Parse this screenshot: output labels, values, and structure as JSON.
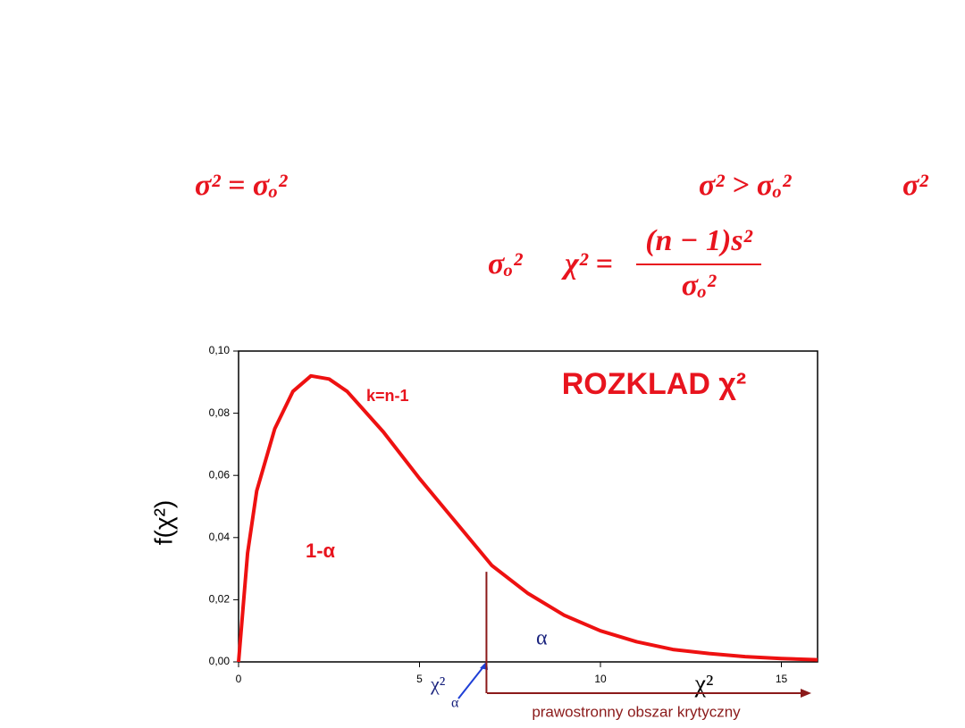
{
  "formulas": {
    "null_hypothesis": "σ² = σₒ²",
    "alternative": "σ² > σₒ²",
    "cut_off": "σ²",
    "variance": "σₒ²",
    "statistic_lhs": "χ² =",
    "statistic_num": "(n − 1)s²",
    "statistic_den": "σₒ²"
  },
  "chart_data": {
    "type": "line",
    "title": "ROZKLAD  χ²",
    "y_label": "f(χ²)",
    "x_label": "χ²",
    "x": [
      0,
      0.25,
      0.5,
      1,
      1.5,
      2,
      2.5,
      3,
      4,
      5,
      6,
      7,
      8,
      9,
      10,
      11,
      12,
      13,
      14,
      15,
      16
    ],
    "series": [
      {
        "name": "k=n-1",
        "color": "#ee1111",
        "values": [
          0,
          0.035,
          0.055,
          0.075,
          0.087,
          0.092,
          0.091,
          0.087,
          0.074,
          0.059,
          0.045,
          0.031,
          0.022,
          0.015,
          0.01,
          0.0065,
          0.004,
          0.0027,
          0.0017,
          0.0011,
          0.0007
        ]
      }
    ],
    "xlim": [
      0,
      16
    ],
    "ylim": [
      0,
      0.1
    ],
    "xticks": [
      0,
      5,
      10,
      15
    ],
    "yticks": [
      {
        "value": 0,
        "label": "0,00"
      },
      {
        "value": 0.02,
        "label": "0,02"
      },
      {
        "value": 0.04,
        "label": "0,04"
      },
      {
        "value": 0.06,
        "label": "0,06"
      },
      {
        "value": 0.08,
        "label": "0,08"
      },
      {
        "value": 0.1,
        "label": "0,10"
      }
    ],
    "critical": {
      "x": 6.85,
      "y": 0.029,
      "label": "χ²",
      "subscript": "α",
      "color": "#8b1a1a"
    },
    "annotations": {
      "acceptance": "1-α",
      "rejection": "α",
      "region": "prawostronny obszar krytyczny"
    }
  }
}
